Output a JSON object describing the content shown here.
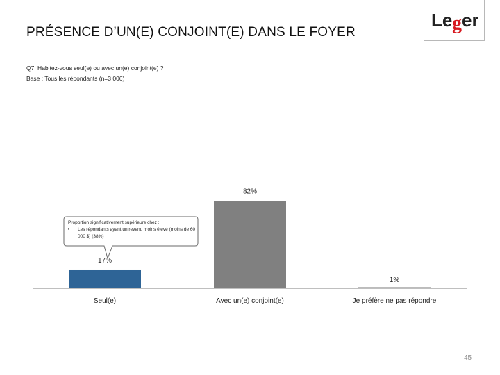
{
  "page": {
    "title": "PRÉSENCE D’UN(E) CONJOINT(E) DANS LE FOYER",
    "question": "Q7. Habitez-vous seul(e) ou avec un(e) conjoint(e) ?",
    "base": "Base : Tous les répondants (n=3 006)",
    "page_number": "45"
  },
  "logo": {
    "text": "Leger",
    "accent_color": "#d71920"
  },
  "callout": {
    "heading": "Proportion significativement supérieure chez :",
    "bullet_symbol": "▪",
    "bullet_text": "Les répondants ayant un revenu moins élevé (moins de 60 000 $) (38%)"
  },
  "colors": {
    "highlight_bar": "#2e6496",
    "default_bar": "#808080",
    "axis": "#7f7f7f"
  },
  "chart_data": {
    "type": "bar",
    "title": "PRÉSENCE D’UN(E) CONJOINT(E) DANS LE FOYER",
    "categories": [
      "Seul(e)",
      "Avec un(e) conjoint(e)",
      "Je préfère ne pas répondre"
    ],
    "values": [
      17,
      82,
      1
    ],
    "value_labels": [
      "17%",
      "82%",
      "1%"
    ],
    "bar_colors": [
      "#2e6496",
      "#808080",
      "#808080"
    ],
    "xlabel": "",
    "ylabel": "",
    "ylim": [
      0,
      100
    ],
    "grid": false,
    "legend": "none"
  }
}
